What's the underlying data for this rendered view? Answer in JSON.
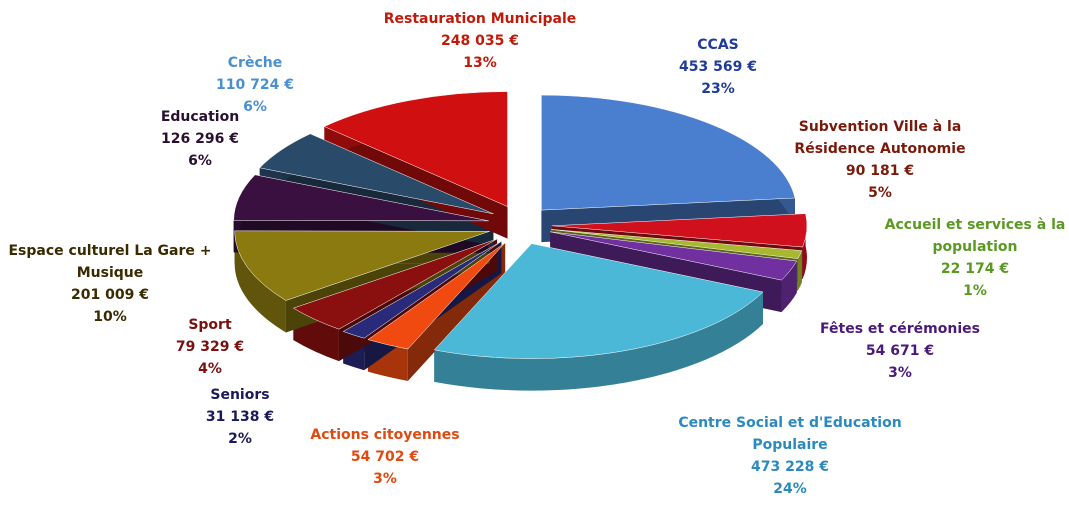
{
  "chart_data": {
    "type": "pie",
    "categories": [
      "CCAS",
      "Subvention Ville à la Résidence Autonomie",
      "Accueil et services à la population",
      "Fêtes et cérémonies",
      "Centre Social et d'Education Populaire",
      "Actions citoyennes",
      "Seniors",
      "Sport",
      "Espace culturel La Gare + Musique",
      "Education",
      "Crèche",
      "Restauration Municipale"
    ],
    "values": [
      453569,
      90181,
      22174,
      54671,
      473228,
      54702,
      31138,
      79329,
      201009,
      126296,
      110724,
      248035
    ],
    "value_labels": [
      "453 569 €",
      "90 181 €",
      "22 174 €",
      "54 671 €",
      "473 228 €",
      "54 702 €",
      "31 138 €",
      "79 329 €",
      "201 009 €",
      "126 296 €",
      "110 724 €",
      "248 035 €"
    ],
    "percents": [
      23,
      5,
      1,
      3,
      24,
      3,
      2,
      4,
      10,
      6,
      6,
      13
    ],
    "percent_labels": [
      "23%",
      "5%",
      "1%",
      "3%",
      "24%",
      "3%",
      "2%",
      "4%",
      "10%",
      "6%",
      "6%",
      "13%"
    ],
    "colors": [
      "#4a7fd0",
      "#d0101c",
      "#a8b830",
      "#7030a0",
      "#4bb8d8",
      "#f04a10",
      "#2a2a7a",
      "#8a1010",
      "#8a7a10",
      "#3a1040",
      "#2a4a6a",
      "#d01010"
    ],
    "label_colors": [
      "#1f3c9a",
      "#7a1a0a",
      "#5a9a20",
      "#4a1a7a",
      "#2a8ac0",
      "#e04a10",
      "#1a1a5a",
      "#7a1010",
      "#3a2a00",
      "#2a1030",
      "#4a90d0",
      "#c01a0a"
    ]
  }
}
